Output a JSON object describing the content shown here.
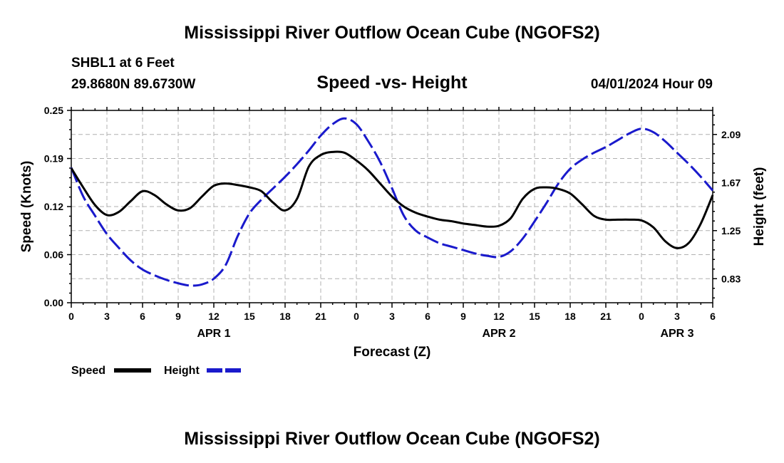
{
  "page": {
    "title_top": "Mississippi River Outflow Ocean Cube (NGOFS2)",
    "title_bottom": "Mississippi River Outflow Ocean Cube (NGOFS2)",
    "station": "SHBL1 at 6 Feet",
    "coords": "29.8680N  89.6730W",
    "chart_title": "Speed -vs- Height",
    "datetime": "04/01/2024 Hour 09"
  },
  "colors": {
    "speed": "#000000",
    "height": "#1a1acc",
    "grid": "#b0b0b0"
  },
  "chart_data": {
    "type": "line",
    "title": "Speed -vs- Height",
    "xlabel": "Forecast (Z)",
    "ylabel": "Speed (Knots)",
    "y2label": "Height (feet)",
    "xlim": [
      0,
      54
    ],
    "ylim": [
      0,
      0.25
    ],
    "y2lim": [
      0.62,
      2.3
    ],
    "x_ticks": [
      0,
      3,
      6,
      9,
      12,
      15,
      18,
      21,
      24,
      27,
      30,
      33,
      36,
      39,
      42,
      45,
      48,
      51,
      54
    ],
    "x_tick_labels": [
      "0",
      "3",
      "6",
      "9",
      "12",
      "15",
      "18",
      "21",
      "0",
      "3",
      "6",
      "9",
      "12",
      "15",
      "18",
      "21",
      "0",
      "3",
      "6"
    ],
    "y_ticks": [
      0,
      0.0625,
      0.125,
      0.1875,
      0.25
    ],
    "y_tick_labels": [
      "0.00",
      "0.06",
      "0.12",
      "0.19",
      "0.25"
    ],
    "y2_ticks": [
      0.83,
      1.25,
      1.67,
      2.09
    ],
    "y2_tick_labels": [
      "0.83",
      "1.25",
      "1.67",
      "2.09"
    ],
    "date_labels": [
      {
        "x": 12,
        "text": "APR 1"
      },
      {
        "x": 36,
        "text": "APR 2"
      },
      {
        "x": 51,
        "text": "APR 3"
      }
    ],
    "series": [
      {
        "name": "Speed",
        "axis": "left",
        "style": "solid",
        "x": [
          0,
          1,
          2,
          3,
          4,
          5,
          6,
          7,
          8,
          9,
          10,
          11,
          12,
          13,
          14,
          15,
          16,
          17,
          18,
          19,
          20,
          21,
          22,
          23,
          24,
          25,
          26,
          27,
          28,
          29,
          30,
          31,
          32,
          33,
          34,
          35,
          36,
          37,
          38,
          39,
          40,
          41,
          42,
          43,
          44,
          45,
          46,
          47,
          48,
          49,
          50,
          51,
          52,
          53,
          54
        ],
        "values": [
          0.175,
          0.15,
          0.127,
          0.114,
          0.118,
          0.132,
          0.145,
          0.14,
          0.128,
          0.12,
          0.123,
          0.138,
          0.152,
          0.155,
          0.153,
          0.15,
          0.145,
          0.13,
          0.12,
          0.135,
          0.177,
          0.192,
          0.196,
          0.195,
          0.185,
          0.172,
          0.155,
          0.138,
          0.125,
          0.117,
          0.112,
          0.108,
          0.106,
          0.103,
          0.101,
          0.099,
          0.1,
          0.11,
          0.135,
          0.148,
          0.15,
          0.148,
          0.142,
          0.128,
          0.113,
          0.108,
          0.108,
          0.108,
          0.107,
          0.098,
          0.08,
          0.071,
          0.078,
          0.103,
          0.14
        ]
      },
      {
        "name": "Height",
        "axis": "right",
        "style": "dashed",
        "x": [
          0,
          1,
          2,
          3,
          4,
          5,
          6,
          7,
          8,
          9,
          10,
          11,
          12,
          13,
          14,
          15,
          16,
          17,
          18,
          19,
          20,
          21,
          22,
          23,
          24,
          25,
          26,
          27,
          28,
          29,
          30,
          31,
          32,
          33,
          34,
          35,
          36,
          37,
          38,
          39,
          40,
          41,
          42,
          43,
          44,
          45,
          46,
          47,
          48,
          49,
          50,
          51,
          52,
          53,
          54
        ],
        "values": [
          1.8,
          1.55,
          1.38,
          1.22,
          1.1,
          0.99,
          0.91,
          0.86,
          0.82,
          0.79,
          0.77,
          0.78,
          0.83,
          0.95,
          1.2,
          1.4,
          1.52,
          1.62,
          1.72,
          1.83,
          1.95,
          2.08,
          2.18,
          2.23,
          2.18,
          2.03,
          1.85,
          1.62,
          1.38,
          1.25,
          1.19,
          1.14,
          1.11,
          1.08,
          1.05,
          1.03,
          1.02,
          1.07,
          1.18,
          1.33,
          1.49,
          1.66,
          1.79,
          1.87,
          1.93,
          1.98,
          2.04,
          2.1,
          2.14,
          2.11,
          2.03,
          1.93,
          1.83,
          1.72,
          1.6
        ]
      }
    ],
    "legend": [
      {
        "name": "Speed",
        "style": "solid"
      },
      {
        "name": "Height",
        "style": "dashed"
      }
    ]
  }
}
